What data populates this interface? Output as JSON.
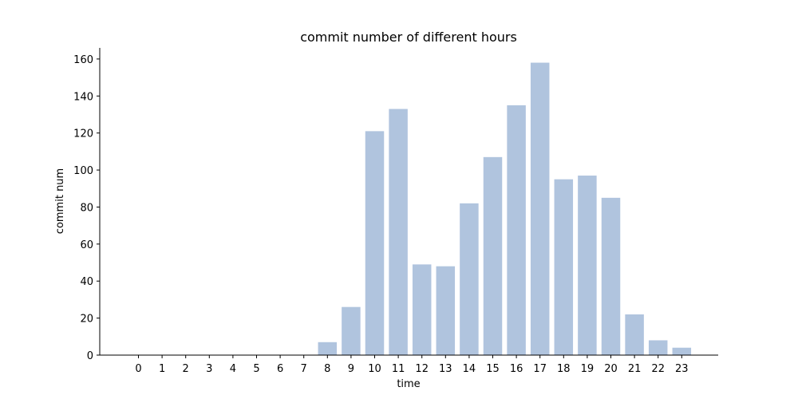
{
  "chart_data": {
    "type": "bar",
    "title": "commit number of different hours",
    "xlabel": "time",
    "ylabel": "commit num",
    "categories": [
      "0",
      "1",
      "2",
      "3",
      "4",
      "5",
      "6",
      "7",
      "8",
      "9",
      "10",
      "11",
      "12",
      "13",
      "14",
      "15",
      "16",
      "17",
      "18",
      "19",
      "20",
      "21",
      "22",
      "23"
    ],
    "values": [
      0,
      0,
      0,
      0,
      0,
      0,
      0,
      0,
      7,
      26,
      121,
      133,
      49,
      48,
      82,
      107,
      135,
      158,
      95,
      97,
      85,
      22,
      8,
      4
    ],
    "ylim": [
      0,
      166
    ],
    "yticks": [
      0,
      20,
      40,
      60,
      80,
      100,
      120,
      140,
      160
    ],
    "grid": false,
    "legend": "none",
    "bar_color": "#b0c4de"
  }
}
